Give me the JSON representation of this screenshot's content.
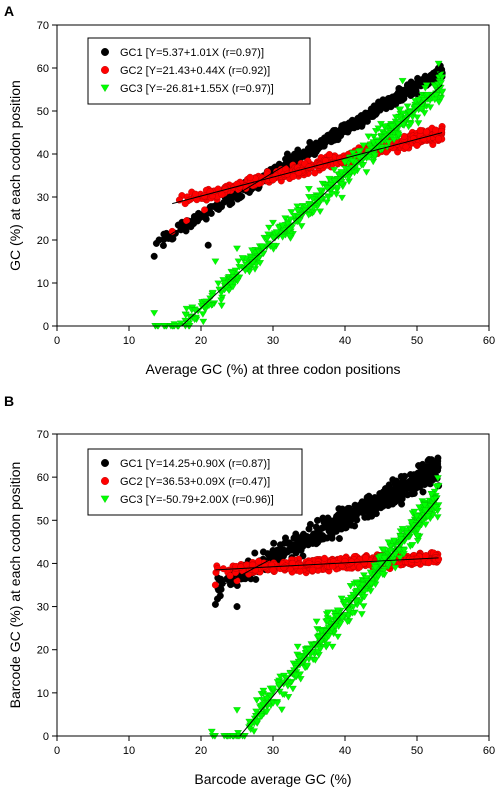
{
  "chart_data": [
    {
      "panel_label": "A",
      "type": "scatter",
      "title": "",
      "xlabel": "Average GC (%) at three codon positions",
      "ylabel": "GC (%) at each codon position",
      "xlim": [
        0,
        60
      ],
      "ylim": [
        0,
        70
      ],
      "xticks": [
        "0",
        "10",
        "20",
        "30",
        "40",
        "50",
        "60"
      ],
      "yticks": [
        "0",
        "10",
        "20",
        "30",
        "40",
        "50",
        "60",
        "70"
      ],
      "legend_position": "top-left",
      "grid": false,
      "series": [
        {
          "name": "GC1 [Y=5.37+1.01X (r=0.97)]",
          "marker": "circle",
          "color": "#000000",
          "fit": {
            "intercept": 5.37,
            "slope": 1.01,
            "x_range": [
              13.5,
              53.5
            ]
          },
          "point_range": {
            "x": [
              13.5,
              53.5
            ],
            "spread": 1.6,
            "sample_points": [
              [
                13.5,
                16.2
              ],
              [
                16.1,
                20.3
              ],
              [
                21.0,
                18.8
              ],
              [
                25.0,
                30.0
              ],
              [
                32.0,
                40.0
              ],
              [
                38.0,
                44.0
              ],
              [
                45.0,
                51.0
              ],
              [
                50.0,
                54.0
              ],
              [
                53.0,
                56.5
              ]
            ]
          }
        },
        {
          "name": "GC2 [Y=21.43+0.44X (r=0.92)]",
          "marker": "circle",
          "color": "#ff0000",
          "fit": {
            "intercept": 21.43,
            "slope": 0.44,
            "x_range": [
              16.0,
              53.5
            ]
          },
          "point_range": {
            "x": [
              16.0,
              53.5
            ],
            "spread": 1.5,
            "sample_points": [
              [
                16.0,
                22.0
              ],
              [
                18.0,
                24.5
              ],
              [
                20.5,
                27.0
              ],
              [
                25.0,
                33.0
              ],
              [
                30.0,
                34.0
              ],
              [
                35.0,
                37.0
              ],
              [
                40.0,
                39.0
              ],
              [
                45.0,
                41.0
              ],
              [
                50.0,
                42.0
              ],
              [
                53.0,
                43.5
              ]
            ]
          }
        },
        {
          "name": "GC3 [Y=-26.81+1.55X (r=0.97)]",
          "marker": "triangle-down",
          "color": "#00ff00",
          "fit": {
            "intercept": -26.81,
            "slope": 1.55,
            "x_range": [
              17.3,
              53.5
            ]
          },
          "point_range": {
            "x": [
              13.5,
              53.5
            ],
            "spread": 3.2,
            "sample_points": [
              [
                13.5,
                3.0
              ],
              [
                18.0,
                4.0
              ],
              [
                22.0,
                15.0
              ],
              [
                25.0,
                18.0
              ],
              [
                30.0,
                24.0
              ],
              [
                35.0,
                30.0
              ],
              [
                40.0,
                38.0
              ],
              [
                45.0,
                47.0
              ],
              [
                48.0,
                57.0
              ],
              [
                53.0,
                61.0
              ]
            ]
          }
        }
      ]
    },
    {
      "panel_label": "B",
      "type": "scatter",
      "title": "",
      "xlabel": "Barcode average GC (%)",
      "ylabel": "Barcode GC (%) at each codon position",
      "xlim": [
        0,
        60
      ],
      "ylim": [
        0,
        70
      ],
      "xticks": [
        "0",
        "10",
        "20",
        "30",
        "40",
        "50",
        "60"
      ],
      "yticks": [
        "0",
        "10",
        "20",
        "30",
        "40",
        "50",
        "60",
        "70"
      ],
      "legend_position": "top-left",
      "grid": false,
      "series": [
        {
          "name": "GC1 [Y=14.25+0.90X (r=0.87)]",
          "marker": "circle",
          "color": "#000000",
          "fit": {
            "intercept": 14.25,
            "slope": 0.9,
            "x_range": [
              22.0,
              53.0
            ]
          },
          "point_range": {
            "x": [
              22.0,
              53.0
            ],
            "spread": 2.8,
            "sample_points": [
              [
                22.0,
                30.5
              ],
              [
                25.0,
                30.0
              ],
              [
                30.0,
                43.0
              ],
              [
                35.0,
                48.0
              ],
              [
                40.0,
                52.0
              ],
              [
                45.0,
                56.0
              ],
              [
                48.0,
                59.0
              ],
              [
                52.0,
                60.0
              ],
              [
                53.0,
                58.0
              ]
            ]
          }
        },
        {
          "name": "GC2 [Y=36.53+0.09X (r=0.47)]",
          "marker": "circle",
          "color": "#ff0000",
          "fit": {
            "intercept": 36.53,
            "slope": 0.09,
            "x_range": [
              22.0,
              53.0
            ]
          },
          "point_range": {
            "x": [
              22.0,
              53.0
            ],
            "spread": 1.4,
            "sample_points": [
              [
                22.0,
                35.0
              ],
              [
                25.0,
                36.0
              ],
              [
                30.0,
                38.5
              ],
              [
                35.0,
                40.0
              ],
              [
                40.0,
                40.5
              ],
              [
                45.0,
                40.5
              ],
              [
                50.0,
                41.0
              ],
              [
                53.0,
                41.0
              ]
            ]
          }
        },
        {
          "name": "GC3 [Y=-50.79+2.00X (r=0.96)]",
          "marker": "triangle-down",
          "color": "#00ff00",
          "fit": {
            "intercept": -50.79,
            "slope": 2.0,
            "x_range": [
              25.4,
              53.0
            ]
          },
          "point_range": {
            "x": [
              21.5,
              53.0
            ],
            "spread": 3.8,
            "sample_points": [
              [
                21.5,
                1.0
              ],
              [
                25.0,
                6.0
              ],
              [
                30.0,
                11.0
              ],
              [
                35.0,
                20.0
              ],
              [
                40.0,
                31.0
              ],
              [
                45.0,
                40.0
              ],
              [
                48.0,
                48.0
              ],
              [
                53.0,
                58.0
              ]
            ]
          }
        }
      ]
    }
  ]
}
